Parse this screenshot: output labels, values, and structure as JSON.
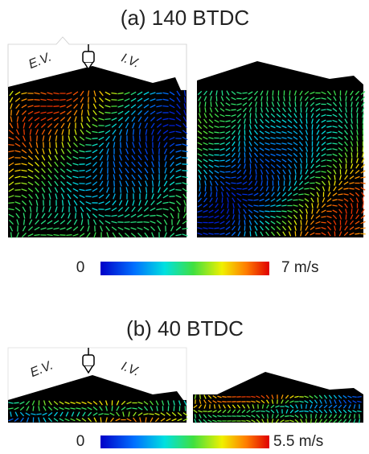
{
  "panels": [
    {
      "title": "(a) 140 BTDC",
      "exhaust_label": "E.V.",
      "intake_label": "I.V.",
      "scale_min": "0",
      "scale_max": "7 m/s"
    },
    {
      "title": "(b) 40 BTDC",
      "exhaust_label": "E.V.",
      "intake_label": "I.V.",
      "scale_min": "0",
      "scale_max": "5.5 m/s"
    }
  ]
}
